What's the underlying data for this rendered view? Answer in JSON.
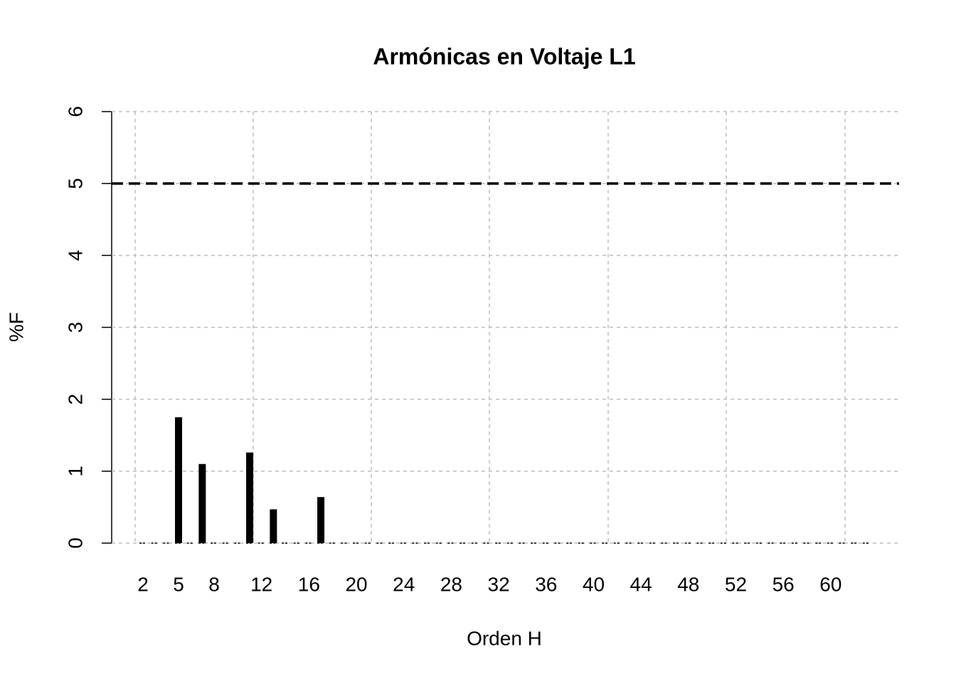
{
  "chart_data": {
    "type": "bar",
    "title": "Armónicas en Voltaje L1",
    "x_label": "Orden H",
    "y_label": "%F",
    "categories": [
      2,
      null,
      null,
      5,
      null,
      null,
      8,
      null,
      null,
      null,
      12,
      null,
      null,
      null,
      16,
      null,
      null,
      null,
      20,
      null,
      null,
      null,
      24,
      null,
      null,
      null,
      28,
      null,
      null,
      null,
      32,
      null,
      null,
      null,
      36,
      null,
      null,
      null,
      40,
      null,
      null,
      null,
      44,
      null,
      null,
      null,
      48,
      null,
      null,
      null,
      52,
      null,
      null,
      null,
      56,
      null,
      null,
      null,
      60,
      null,
      null,
      null
    ],
    "values": [
      0,
      0,
      0,
      1.75,
      0,
      1.1,
      0,
      0,
      0,
      1.26,
      0,
      0.47,
      0,
      0,
      0,
      0.64,
      0,
      0,
      0,
      0,
      0,
      0,
      0,
      0,
      0,
      0,
      0,
      0,
      0,
      0,
      0,
      0,
      0,
      0,
      0,
      0,
      0,
      0,
      0,
      0,
      0,
      0,
      0,
      0,
      0,
      0,
      0,
      0,
      0,
      0,
      0,
      0,
      0,
      0,
      0,
      0,
      0,
      0,
      0,
      0,
      0,
      0
    ],
    "color": "#000000",
    "ylim": [
      0,
      6
    ],
    "yticks": [
      0,
      1,
      2,
      3,
      4,
      5,
      6
    ],
    "grid": true,
    "reference_line": 5
  }
}
